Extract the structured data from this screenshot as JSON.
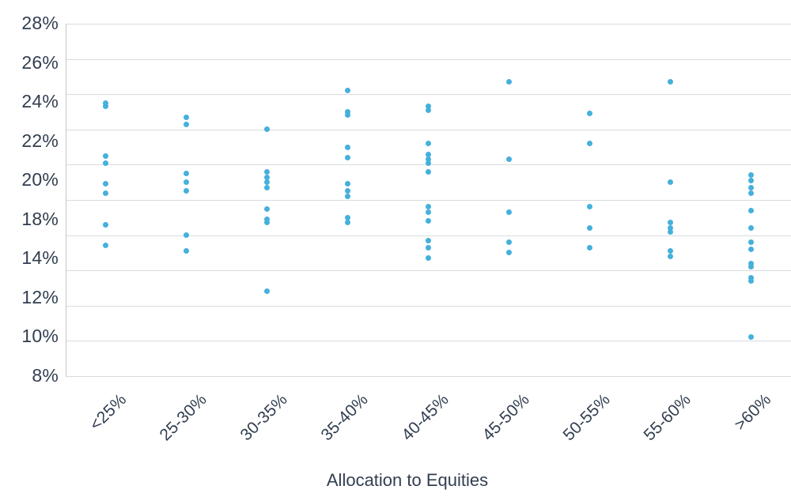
{
  "chart_data": {
    "type": "scatter",
    "subtype": "strip-plot",
    "title": "",
    "xlabel": "Allocation to Equities",
    "ylabel": "",
    "grid": true,
    "legend": "none",
    "x_categories": [
      "<25%",
      "25-30%",
      "30-35%",
      "35-40%",
      "40-45%",
      "45-50%",
      "50-55%",
      "55-60%",
      ">60%"
    ],
    "y_axis": {
      "min": 8,
      "max": 28,
      "gridline_step_pct": 2,
      "unit": "%",
      "tick_labels_top_to_bottom": [
        "28%",
        "26%",
        "24%",
        "22%",
        "20%",
        "18%",
        "14%",
        "12%",
        "10%",
        "8%"
      ],
      "note_visible_quirk": "10 evenly spaced labels over 11 gridlines; 16% label absent"
    },
    "series": [
      {
        "category": "<25%",
        "values": [
          23.5,
          23.3,
          20.5,
          20.1,
          18.9,
          18.4,
          16.6,
          15.4
        ]
      },
      {
        "category": "25-30%",
        "values": [
          22.7,
          22.3,
          19.5,
          19.0,
          18.5,
          16.0,
          15.1
        ]
      },
      {
        "category": "30-35%",
        "values": [
          22.0,
          19.6,
          19.3,
          19.0,
          18.7,
          17.5,
          16.9,
          16.7,
          12.8
        ]
      },
      {
        "category": "35-40%",
        "values": [
          24.2,
          23.0,
          22.8,
          21.0,
          20.4,
          18.9,
          18.5,
          18.2,
          17.0,
          16.7
        ]
      },
      {
        "category": "40-45%",
        "values": [
          23.3,
          23.1,
          21.2,
          20.6,
          20.3,
          20.1,
          19.6,
          17.6,
          17.3,
          16.8,
          15.7,
          15.3,
          14.7
        ]
      },
      {
        "category": "45-50%",
        "values": [
          24.7,
          20.3,
          17.3,
          15.6,
          15.0
        ]
      },
      {
        "category": "50-55%",
        "values": [
          22.9,
          21.2,
          17.6,
          16.4,
          15.3
        ]
      },
      {
        "category": "55-60%",
        "values": [
          24.7,
          19.0,
          16.7,
          16.4,
          16.2,
          15.1,
          14.8
        ]
      },
      {
        "category": ">60%",
        "values": [
          19.4,
          19.1,
          18.7,
          18.4,
          17.4,
          16.4,
          15.6,
          15.2,
          14.4,
          14.2,
          13.6,
          13.4,
          10.2
        ]
      }
    ]
  },
  "colors": {
    "dot": "#45b0db",
    "gridline": "#d9dbdd",
    "axis_line": "#c2c7cb",
    "text": "#323e50",
    "background": "#ffffff"
  },
  "layout_hints": {
    "x_tick_rotation_deg": 45,
    "legend_position": "none"
  }
}
